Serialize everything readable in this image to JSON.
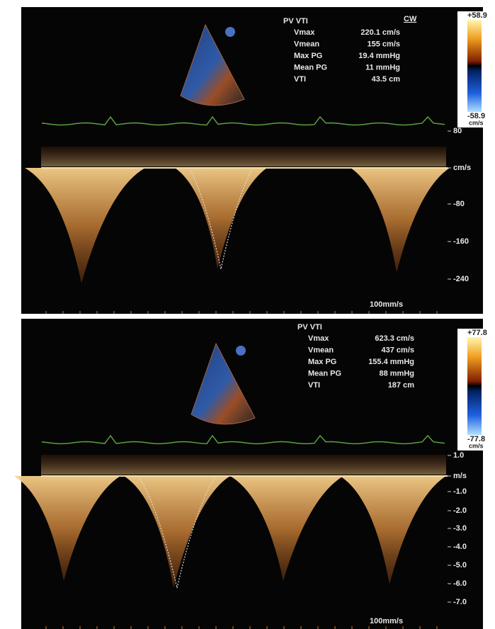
{
  "panels": [
    {
      "measurements": {
        "title": "PV VTI",
        "rows": [
          {
            "label": "Vmax",
            "value": "220.1 cm/s"
          },
          {
            "label": "Vmean",
            "value": "155 cm/s"
          },
          {
            "label": "Max PG",
            "value": "19.4 mmHg"
          },
          {
            "label": "Mean PG",
            "value": "11 mmHg"
          },
          {
            "label": "VTI",
            "value": "43.5 cm"
          }
        ]
      },
      "mode": "CW",
      "color_scale": {
        "top": "+58.9",
        "bottom": "-58.9",
        "unit": "cm/s"
      },
      "axis_labels": [
        "80",
        "cm/s",
        "-80",
        "-160",
        "-240"
      ],
      "sweep_speed": "100mm/s"
    },
    {
      "measurements": {
        "title": "PV VTI",
        "rows": [
          {
            "label": "Vmax",
            "value": "623.3 cm/s"
          },
          {
            "label": "Vmean",
            "value": "437 cm/s"
          },
          {
            "label": "Max PG",
            "value": "155.4 mmHg"
          },
          {
            "label": "Mean PG",
            "value": "88 mmHg"
          },
          {
            "label": "VTI",
            "value": "187 cm"
          }
        ]
      },
      "color_scale": {
        "top": "+77.8",
        "bottom": "-77.8",
        "unit": "cm/s"
      },
      "axis_labels": [
        "1.0",
        "m/s",
        "-1.0",
        "-2.0",
        "-3.0",
        "-4.0",
        "-5.0",
        "-6.0",
        "-7.0"
      ],
      "sweep_speed": "100mm/s"
    }
  ]
}
